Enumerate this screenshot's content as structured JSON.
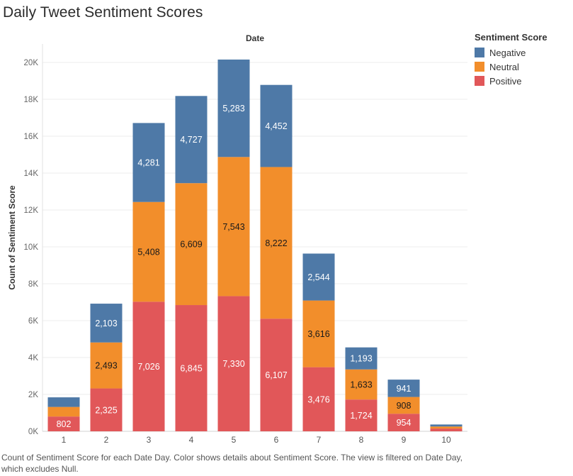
{
  "page": {
    "title": "Daily Tweet Sentiment Scores",
    "caption": "Count of Sentiment Score for each Date Day.  Color shows details about Sentiment Score. The view is filtered on Date Day, which excludes Null."
  },
  "legend": {
    "title": "Sentiment Score",
    "items": [
      {
        "label": "Negative",
        "color": "#4e79a7"
      },
      {
        "label": "Neutral",
        "color": "#f28e2b"
      },
      {
        "label": "Positive",
        "color": "#e15759"
      }
    ]
  },
  "chart_data": {
    "type": "bar",
    "stacked": true,
    "title": "Daily Tweet Sentiment Scores",
    "xlabel": "Date",
    "ylabel": "Count of Sentiment Score",
    "categories": [
      "1",
      "2",
      "3",
      "4",
      "5",
      "6",
      "7",
      "8",
      "9",
      "10"
    ],
    "ylim": [
      0,
      21000
    ],
    "yticks": [
      0,
      2000,
      4000,
      6000,
      8000,
      10000,
      12000,
      14000,
      16000,
      18000,
      20000
    ],
    "ytick_labels": [
      "0K",
      "2K",
      "4K",
      "6K",
      "8K",
      "10K",
      "12K",
      "14K",
      "16K",
      "18K",
      "20K"
    ],
    "grid": true,
    "legend_position": "right",
    "series": [
      {
        "name": "Positive",
        "color": "#e15759",
        "values": [
          802,
          2325,
          7026,
          6845,
          7330,
          6107,
          3476,
          1724,
          954,
          150
        ],
        "labels": [
          "802",
          "2,325",
          "7,026",
          "6,845",
          "7,330",
          "6,107",
          "3,476",
          "1,724",
          "954",
          ""
        ]
      },
      {
        "name": "Neutral",
        "color": "#f28e2b",
        "values": [
          520,
          2493,
          5408,
          6609,
          7543,
          8222,
          3616,
          1633,
          908,
          110
        ],
        "labels": [
          "",
          "2,493",
          "5,408",
          "6,609",
          "7,543",
          "8,222",
          "3,616",
          "1,633",
          "908",
          ""
        ]
      },
      {
        "name": "Negative",
        "color": "#4e79a7",
        "values": [
          520,
          2103,
          4281,
          4727,
          5283,
          4452,
          2544,
          1193,
          941,
          110
        ],
        "labels": [
          "",
          "2,103",
          "4,281",
          "4,727",
          "5,283",
          "4,452",
          "2,544",
          "1,193",
          "941",
          ""
        ]
      }
    ]
  }
}
